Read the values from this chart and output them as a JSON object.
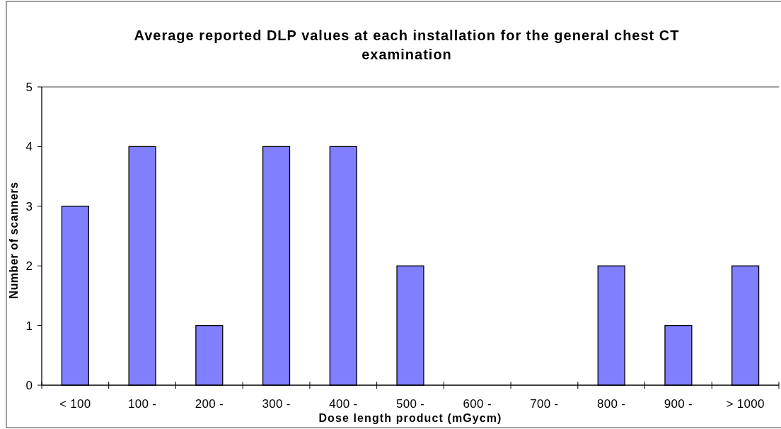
{
  "chart_data": {
    "type": "bar",
    "title": "Average reported DLP values at each installation for the general chest CT examination",
    "xlabel": "Dose length product (mGycm)",
    "ylabel": "Number of scanners",
    "categories": [
      "< 100",
      "100 -",
      "200 -",
      "300 -",
      "400 -",
      "500 -",
      "600 -",
      "700 -",
      "800 -",
      "900 -",
      "> 1000"
    ],
    "values": [
      3,
      4,
      1,
      4,
      4,
      2,
      0,
      0,
      2,
      1,
      2
    ],
    "color": "#8080ff",
    "ylim": [
      0,
      5
    ],
    "yticks": [
      0,
      1,
      2,
      3,
      4,
      5
    ],
    "grid": false
  }
}
